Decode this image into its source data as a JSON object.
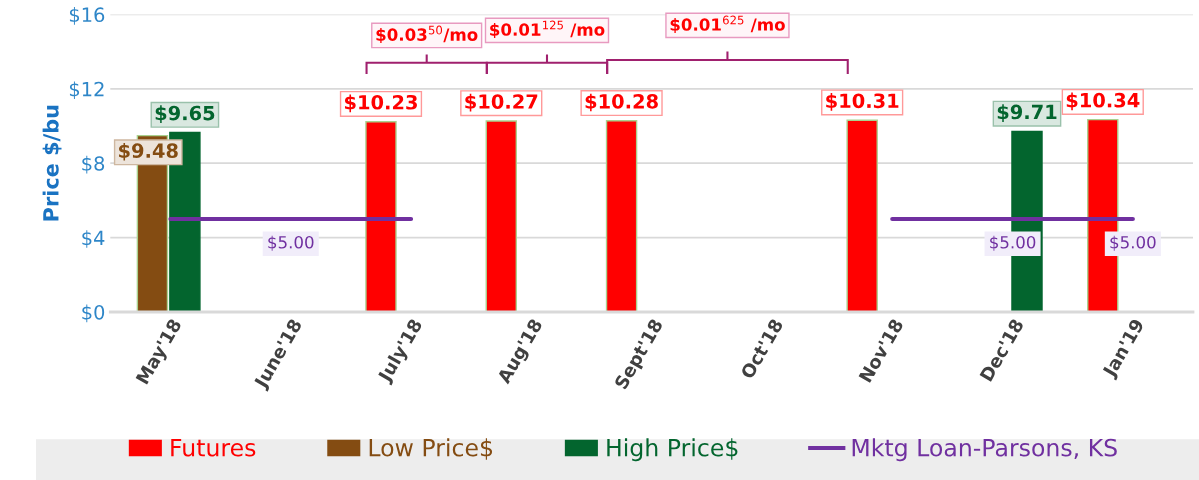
{
  "chart_data": {
    "type": "bar",
    "ylabel": "Price $/bu",
    "categories": [
      "May'18",
      "June'18",
      "July'18",
      "Aug'18",
      "Sept'18",
      "Oct'18",
      "Nov'18",
      "Dec'18",
      "Jan'19"
    ],
    "series": [
      {
        "name": "Futures",
        "color": "#ff0000",
        "values": [
          null,
          null,
          10.23,
          10.27,
          10.28,
          null,
          10.31,
          null,
          10.34
        ],
        "value_labels": [
          null,
          null,
          "$10.23",
          "$10.27",
          "$10.28",
          null,
          "$10.31",
          null,
          "$10.34"
        ]
      },
      {
        "name": "Low Price$",
        "color": "#844c12",
        "values": [
          9.48,
          null,
          null,
          null,
          null,
          null,
          null,
          null,
          null
        ],
        "value_labels": [
          "$9.48",
          null,
          null,
          null,
          null,
          null,
          null,
          null,
          null
        ]
      },
      {
        "name": "High Price$",
        "color": "#03652e",
        "values": [
          9.65,
          null,
          null,
          null,
          null,
          null,
          null,
          9.71,
          null
        ],
        "value_labels": [
          "$9.65",
          null,
          null,
          null,
          null,
          null,
          null,
          "$9.71",
          null
        ]
      },
      {
        "name": "Mktg Loan-Parsons, KS",
        "type": "line",
        "color": "#7030a0",
        "values": [
          5.0,
          5.0,
          5.0,
          null,
          null,
          null,
          5.0,
          5.0,
          5.0
        ],
        "value_labels": [
          null,
          "$5.00",
          null,
          null,
          null,
          null,
          null,
          "$5.00",
          "$5.00"
        ]
      }
    ],
    "ylim": [
      0,
      16
    ],
    "yticks": [
      {
        "value": 0,
        "label": "$0"
      },
      {
        "value": 4,
        "label": "$4"
      },
      {
        "value": 8,
        "label": "$8"
      },
      {
        "value": 12,
        "label": "$12"
      },
      {
        "value": 16,
        "label": "$16"
      }
    ],
    "grid": "y",
    "legend": "bottom",
    "annotations": [
      "$0.03$^{50}$/mo",
      "$0.01$^{125}$ /mo",
      "$0.01$^{625}$ /mo"
    ]
  }
}
